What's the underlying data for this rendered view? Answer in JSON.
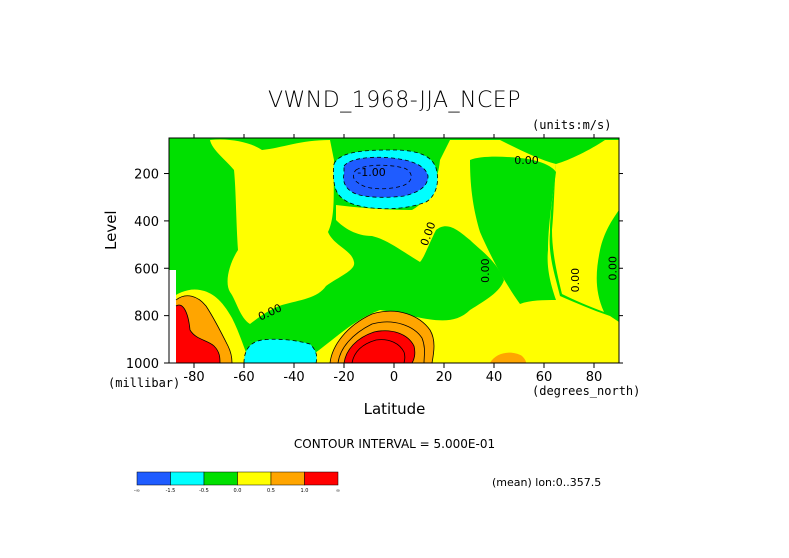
{
  "chart_data": {
    "type": "heatmap",
    "title": "VWND_1968-JJA_NCEP",
    "units_note": "(units:m/s)",
    "xlabel": "Latitude",
    "x_unit": "(degrees_north)",
    "ylabel": "Level",
    "y_unit": "(millibar)",
    "xlim": [
      -90,
      90
    ],
    "ylim": [
      1000,
      50
    ],
    "y_reversed": true,
    "x_ticks": [
      -80,
      -60,
      -40,
      -20,
      0,
      20,
      40,
      60,
      80
    ],
    "y_ticks": [
      200,
      400,
      600,
      800,
      1000
    ],
    "contour_interval_note": "CONTOUR INTERVAL = 5.000E-01",
    "mean_note": "(mean) lon:0..357.5",
    "contour_labels": [
      {
        "text": "0.00",
        "lat": 53,
        "level": 160,
        "rotate": 0
      },
      {
        "text": "-1.00",
        "lat": -9,
        "level": 210,
        "rotate": 0
      },
      {
        "text": "0.00",
        "lat": 15,
        "level": 460,
        "rotate": -70
      },
      {
        "text": "0.00",
        "lat": 38,
        "level": 610,
        "rotate": -90
      },
      {
        "text": "0.00",
        "lat": 74,
        "level": 650,
        "rotate": -90
      },
      {
        "text": "0.00",
        "lat": 89,
        "level": 600,
        "rotate": -90
      },
      {
        "text": "0.00",
        "lat": -49,
        "level": 800,
        "rotate": -25
      }
    ],
    "colorbar": {
      "colors": [
        "#1f5cff",
        "#00ffff",
        "#00e000",
        "#ffff00",
        "#ffa500",
        "#ff0000"
      ],
      "labels": [
        "-∞",
        "-1.5",
        "-0.5",
        "0.0",
        "0.5",
        "1.0",
        "∞"
      ]
    },
    "fill_colors": {
      "neg_strong": "#1f5cff",
      "neg": "#00ffff",
      "neutral_neg": "#00e000",
      "neutral_pos": "#ffff00",
      "pos": "#ffa500",
      "pos_strong": "#ff0000"
    }
  }
}
